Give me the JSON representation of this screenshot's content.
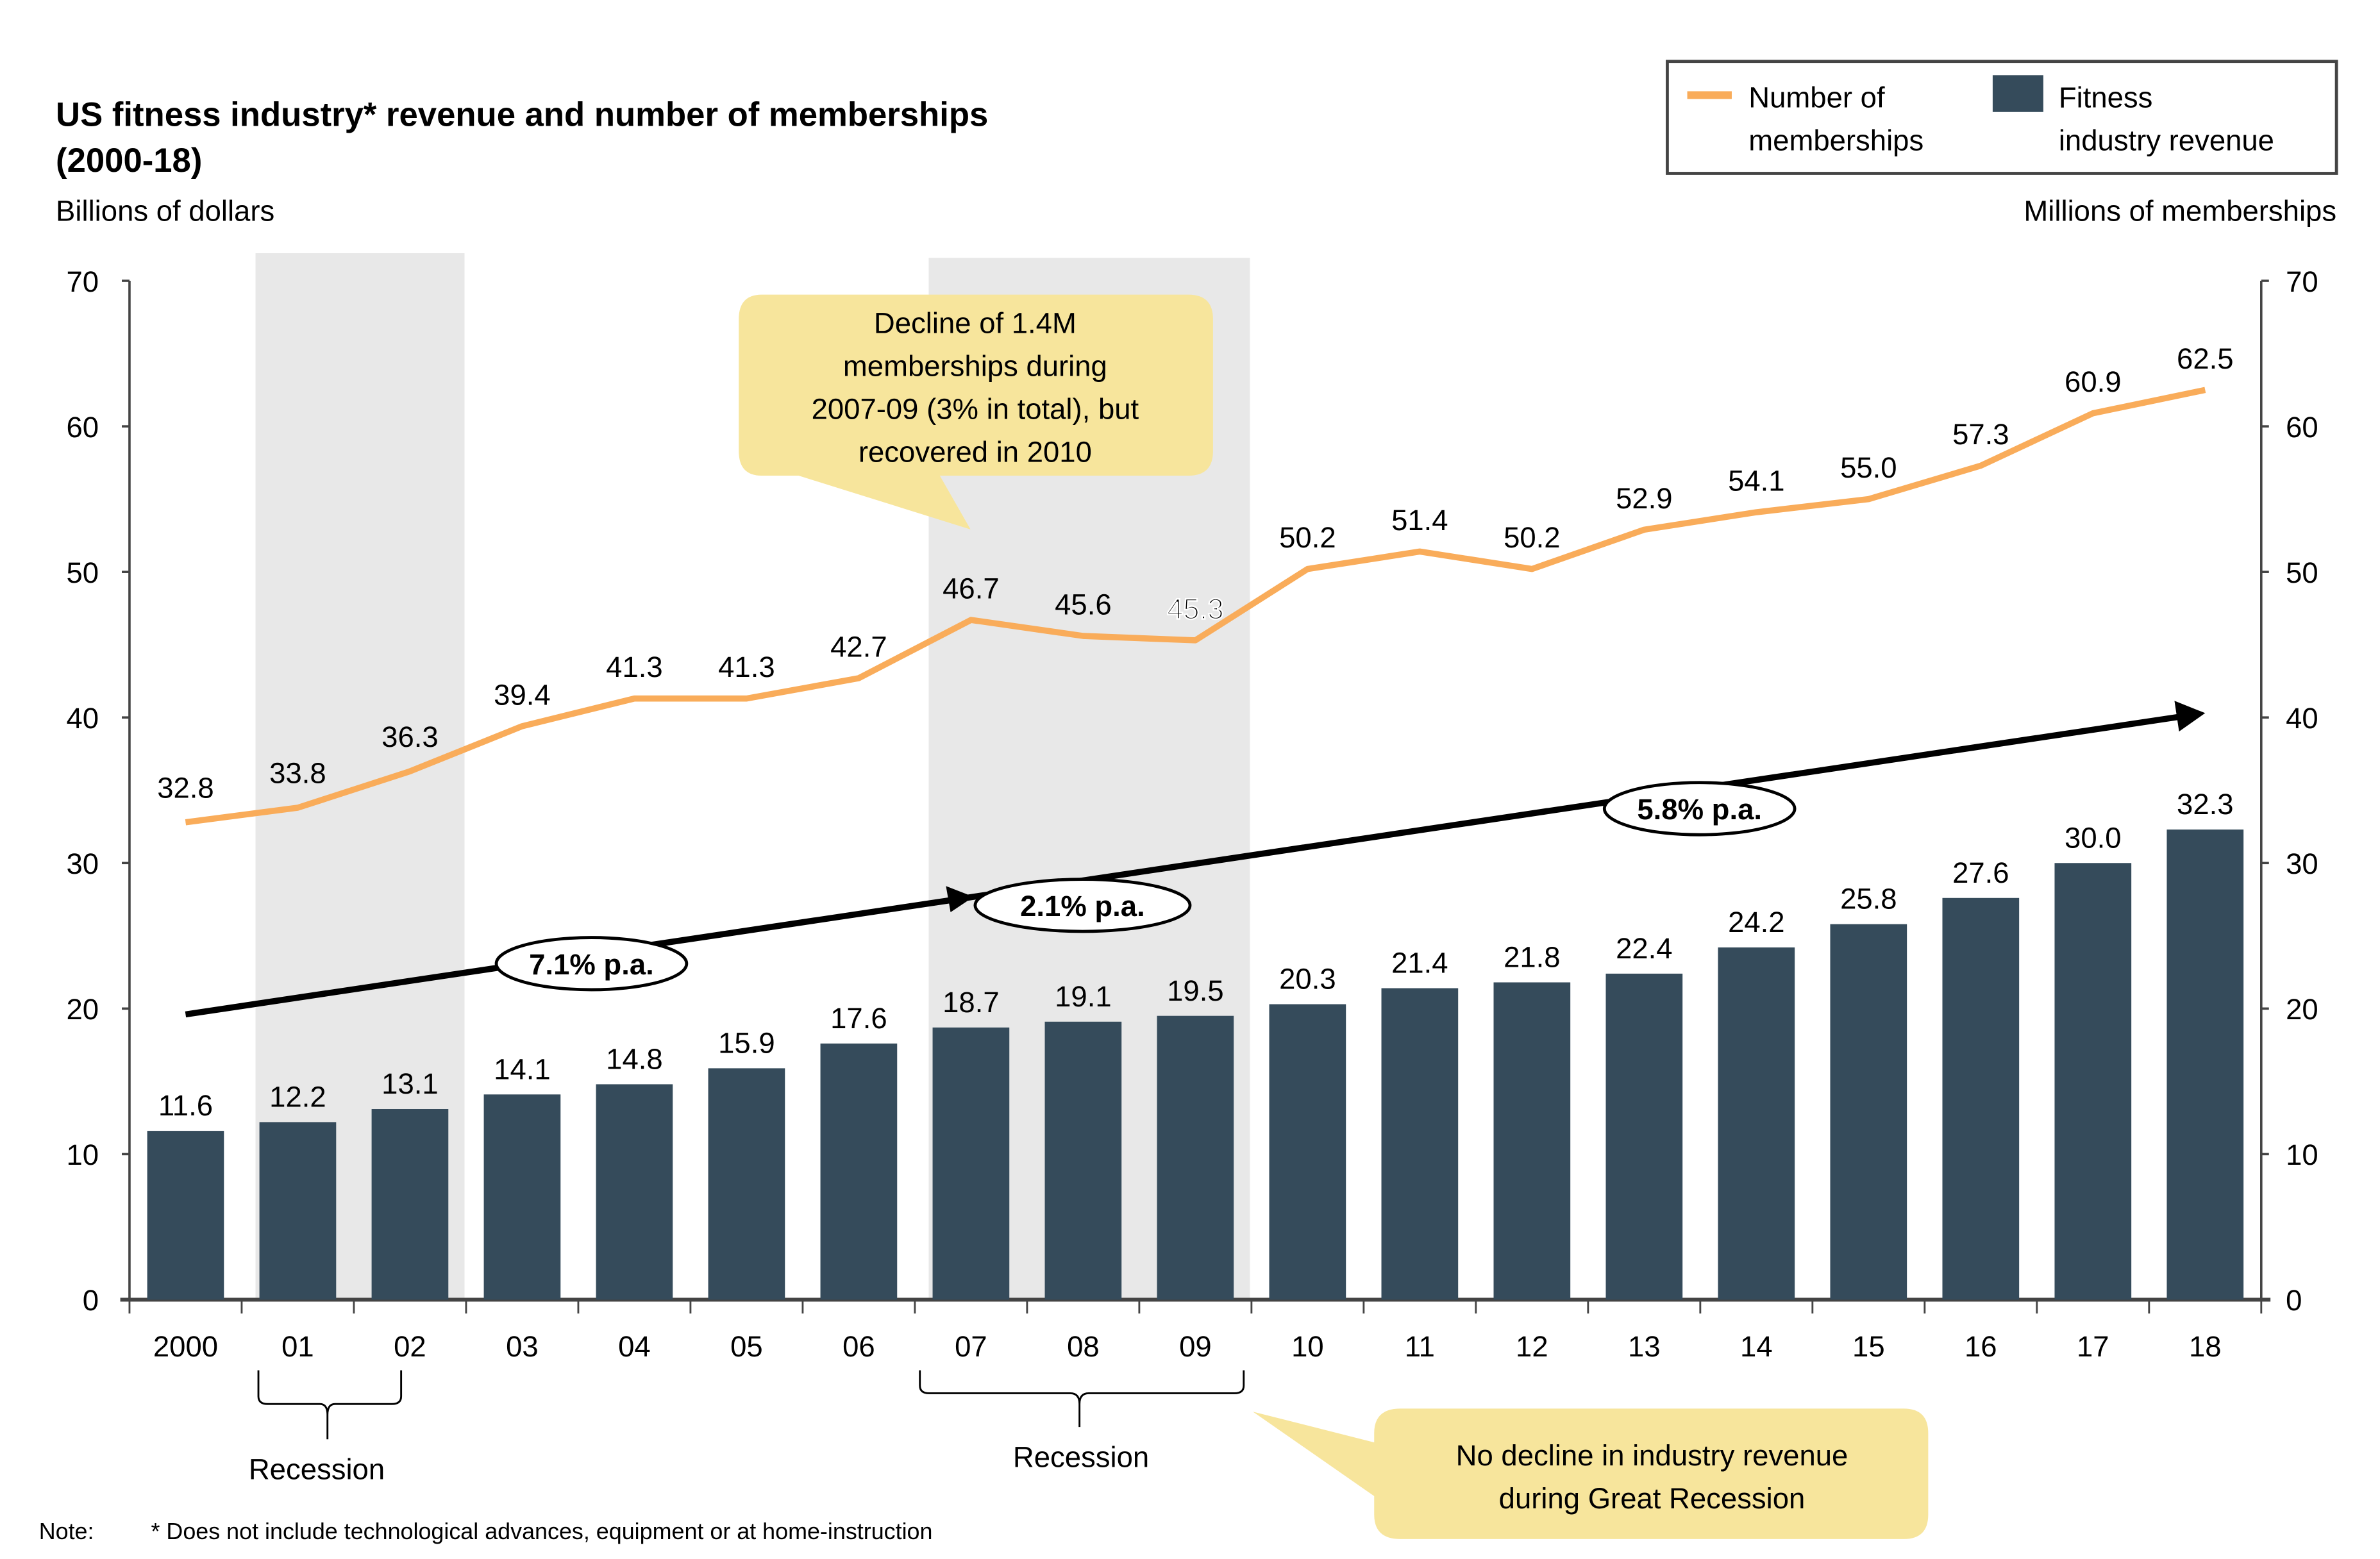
{
  "chart_data": {
    "type": "bar+line",
    "title": "US fitness industry* revenue and number of memberships",
    "subtitle": "(2000-18)",
    "ylabel_left": "Billions of dollars",
    "ylabel_right": "Millions of memberships",
    "ylim": [
      0,
      70
    ],
    "yticks": [
      0,
      10,
      20,
      30,
      40,
      50,
      60,
      70
    ],
    "categories": [
      "2000",
      "01",
      "02",
      "03",
      "04",
      "05",
      "06",
      "07",
      "08",
      "09",
      "10",
      "11",
      "12",
      "13",
      "14",
      "15",
      "16",
      "17",
      "18"
    ],
    "series": [
      {
        "name": "Fitness industry revenue",
        "type": "bar",
        "axis": "left",
        "color": "#354B5B",
        "values": [
          11.6,
          12.2,
          13.1,
          14.1,
          14.8,
          15.9,
          17.6,
          18.7,
          19.1,
          19.5,
          20.3,
          21.4,
          21.8,
          22.4,
          24.2,
          25.8,
          27.6,
          30.0,
          32.3
        ]
      },
      {
        "name": "Number of memberships",
        "type": "line",
        "axis": "right",
        "color": "#F9AC5A",
        "values": [
          32.8,
          33.8,
          36.3,
          39.4,
          41.3,
          41.3,
          42.7,
          46.7,
          45.6,
          45.3,
          50.2,
          51.4,
          50.2,
          52.9,
          54.1,
          55.0,
          57.3,
          60.9,
          62.5
        ]
      }
    ],
    "legend": {
      "placement": "top-right",
      "items": [
        "Number of memberships",
        "Fitness industry revenue"
      ],
      "line1": [
        "Number of",
        "Fitness"
      ],
      "line2": [
        "memberships",
        "industry revenue"
      ]
    },
    "recessions": [
      {
        "from": "01",
        "to": "02",
        "label": "Recession"
      },
      {
        "from": "07",
        "to": "09",
        "label": "Recession"
      }
    ],
    "trend_arrow": {
      "from_value": 19.6,
      "to_value": 40.3
    },
    "growth_labels": [
      "7.1% p.a.",
      "2.1% p.a.",
      "5.8% p.a."
    ],
    "annotations": {
      "top": [
        "Decline of 1.4M",
        "memberships during",
        "2007-09 (3% in total), but",
        "recovered in 2010"
      ],
      "bottom": [
        "No decline in industry revenue",
        "during Great Recession"
      ]
    },
    "note_label": "Note:",
    "note_text": "* Does not include technological advances, equipment or at home-instruction",
    "shade_color": "#E8E8E8",
    "callout_color": "#F7E59C",
    "grid": false
  }
}
